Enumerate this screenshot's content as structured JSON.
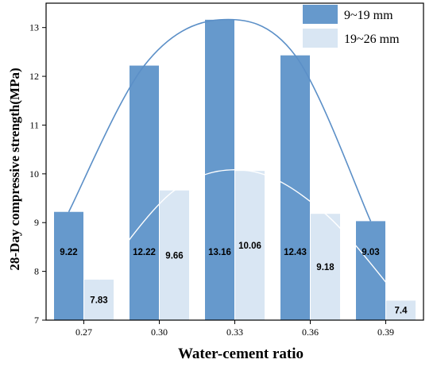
{
  "chart_data": {
    "type": "bar",
    "categories": [
      "0.27",
      "0.30",
      "0.33",
      "0.36",
      "0.39"
    ],
    "series": [
      {
        "name": "9~19 mm",
        "values": [
          9.22,
          12.22,
          13.16,
          12.43,
          9.03
        ],
        "color": "#6699cc"
      },
      {
        "name": "19~26 mm",
        "values": [
          7.83,
          9.66,
          10.06,
          9.18,
          7.4
        ],
        "color": "#d9e6f3"
      }
    ],
    "data_labels": [
      [
        "9.22",
        "12.22",
        "13.16",
        "12.43",
        "9.03"
      ],
      [
        "7.83",
        "9.66",
        "10.06",
        "9.18",
        "7.4"
      ]
    ],
    "trend_lines": true,
    "xlabel": "Water-cement ratio",
    "ylabel": "28-Day compressive strength(MPa)",
    "ylim": [
      7,
      13.5
    ],
    "yticks": [
      "7",
      "8",
      "9",
      "10",
      "11",
      "12",
      "13"
    ],
    "legend_position": "top-right",
    "grid": false
  }
}
